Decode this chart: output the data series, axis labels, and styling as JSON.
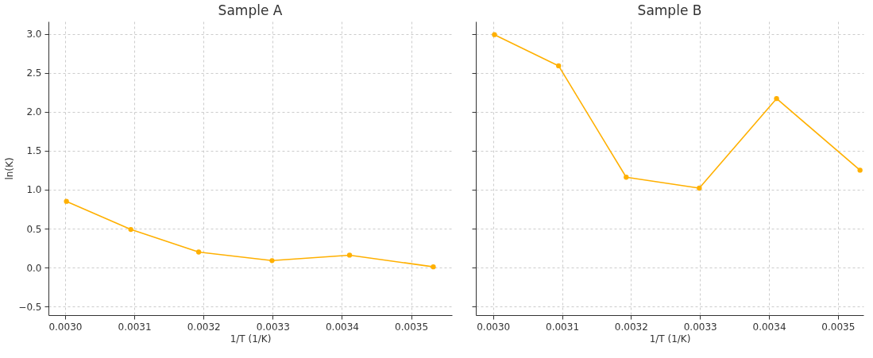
{
  "chart_data": [
    {
      "type": "line",
      "title": "Sample A",
      "xlabel": "1/T (1/K)",
      "ylabel": "ln(K)",
      "x": [
        0.003002,
        0.003095,
        0.003193,
        0.003299,
        0.003411,
        0.003532
      ],
      "series": [
        {
          "color": "#ffb000",
          "values": [
            0.85,
            0.49,
            0.2,
            0.09,
            0.16,
            0.01
          ]
        }
      ],
      "xlim": [
        0.002976,
        0.003559
      ],
      "ylim": [
        -0.61,
        3.16
      ],
      "xticks": [
        {
          "value": 0.003,
          "label": "0.0030"
        },
        0.0031,
        0.0032,
        0.0033,
        0.0034,
        0.0035
      ],
      "yticks": [
        -0.5,
        {
          "value": 0,
          "label": "0.0"
        },
        0.5,
        {
          "value": 1,
          "label": "1.0"
        },
        1.5,
        {
          "value": 2,
          "label": "2.0"
        },
        2.5,
        {
          "value": 3,
          "label": "3.0"
        }
      ],
      "grid": true,
      "marker": "circle",
      "line_style": "solid"
    },
    {
      "type": "line",
      "title": "Sample B",
      "xlabel": "1/T (1/K)",
      "x": [
        0.003002,
        0.003095,
        0.003193,
        0.003299,
        0.003411,
        0.003532
      ],
      "series": [
        {
          "color": "#ffb000",
          "values": [
            2.99,
            2.59,
            1.16,
            1.02,
            2.17,
            1.25
          ]
        }
      ],
      "xlim": [
        0.002975,
        0.003537
      ],
      "ylim": [
        -0.61,
        3.16
      ],
      "xticks": [
        {
          "value": 0.003,
          "label": "0.0030"
        },
        0.0031,
        0.0032,
        0.0033,
        0.0034,
        0.0035
      ],
      "yticks": [
        -0.5,
        0,
        0.5,
        1,
        1.5,
        2,
        2.5,
        3
      ],
      "tick_labels": "x",
      "grid": true,
      "marker": "circle",
      "line_style": "solid"
    }
  ]
}
